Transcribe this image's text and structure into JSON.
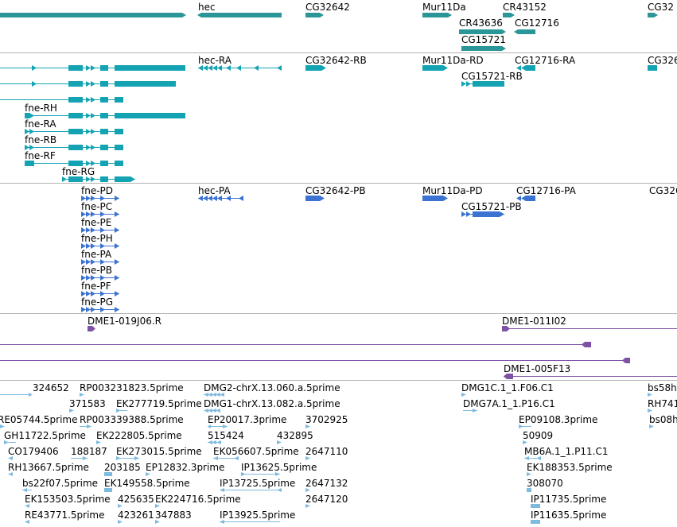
{
  "colors": {
    "gene": "#2a9698",
    "transcript": "#14a3b3",
    "protein": "#3c73d2",
    "clone": "#7d52a5",
    "est": "#7ebae0",
    "divider": "#b3b3b3"
  },
  "tracks": {
    "genes": {
      "labels": [
        "hec",
        "CG32642",
        "Mur11Da",
        "CR43152",
        "CG32",
        "CR43636",
        "CG12716",
        "CG15721"
      ]
    },
    "transcripts": {
      "labels": [
        "hec-RA",
        "CG32642-RB",
        "Mur11Da-RD",
        "CG12716-RA",
        "CG326",
        "CG15721-RB",
        "fne-RH",
        "fne-RA",
        "fne-RB",
        "fne-RF",
        "fne-RG"
      ]
    },
    "proteins": {
      "labels": [
        "fne-PD",
        "hec-PA",
        "CG32642-PB",
        "Mur11Da-PD",
        "CG12716-PA",
        "CG326",
        "CG15721-PB",
        "fne-PC",
        "fne-PE",
        "fne-PH",
        "fne-PA",
        "fne-PB",
        "fne-PF",
        "fne-PG"
      ]
    },
    "clones": {
      "labels": [
        "DME1-019J06.R",
        "DME1-011I02",
        "DME1-005F13"
      ]
    },
    "ests": {
      "labels": [
        "324652",
        "RP003231823.5prime",
        "DMG2-chrX.13.060.a.5prime",
        "DMG1C.1_1.F06.C1",
        "bs58h",
        "371583",
        "EK277719.5prime",
        "DMG1-chrX.13.082.a.5prime",
        "DMG7A.1_1.P16.C1",
        "RH741",
        "RE05744.5prime",
        "RP003339388.5prime",
        "EP20017.3prime",
        "3702925",
        "EP09108.3prime",
        "bs08h",
        "GH11722.5prime",
        "EK222805.5prime",
        "515424",
        "432895",
        "50909",
        "CO179406",
        "188187",
        "EK273015.5prime",
        "EK056607.5prime",
        "2647110",
        "MB6A.1_1.P11.C1",
        "RH13667.5prime",
        "203185",
        "EP12832.3prime",
        "IP13625.5prime",
        "EK188353.5prime",
        "bs22f07.5prime",
        "EK149558.5prime",
        "IP13725.5prime",
        "2647132",
        "308070",
        "EK153503.5prime",
        "425635",
        "EK224716.5prime",
        "2647120",
        "IP11735.5prime",
        "RE43771.5prime",
        "423261",
        "347883",
        "IP13925.5prime",
        "IP11635.5prime"
      ]
    }
  }
}
